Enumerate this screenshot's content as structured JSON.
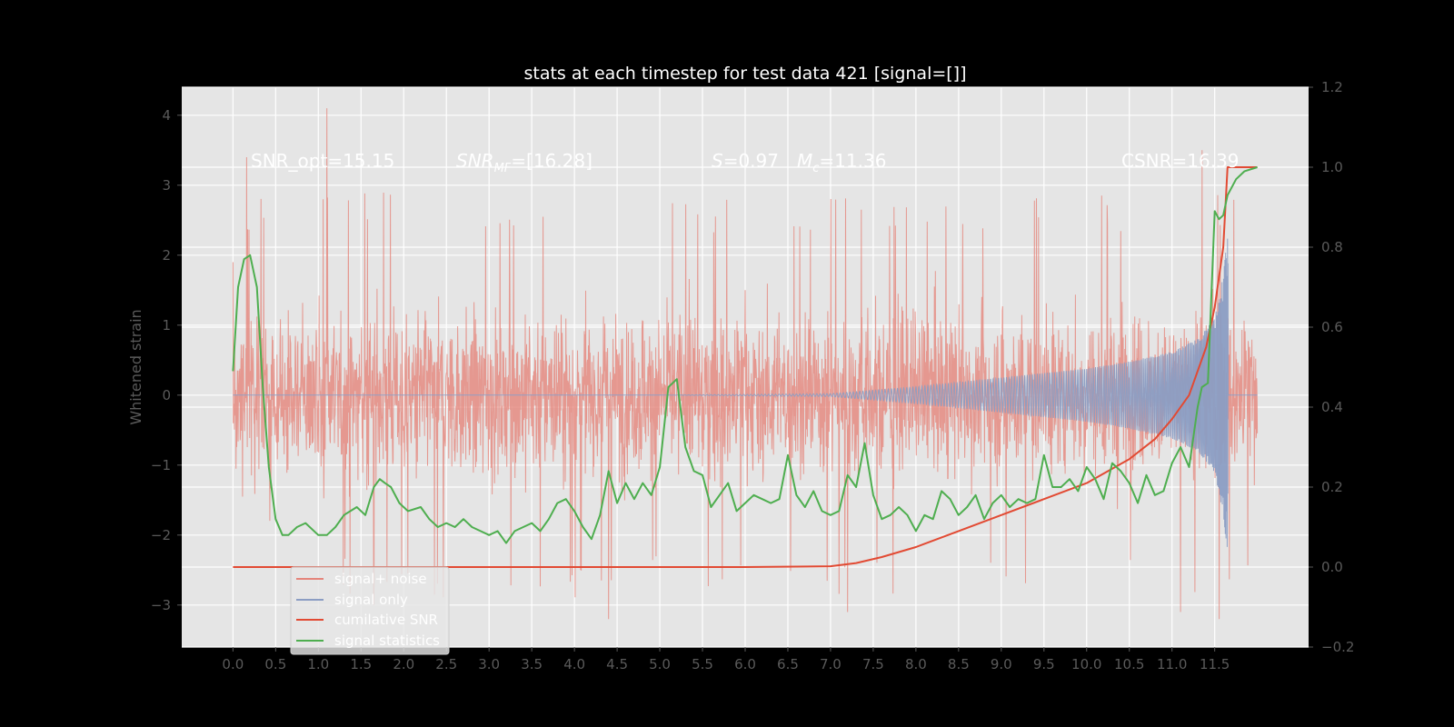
{
  "chart_data": {
    "type": "line",
    "title": "stats at each timestep for test data 421 [signal=[]]",
    "xlabel": "",
    "ylabel": "Whitened strain",
    "y2label": "",
    "xlim": [
      -0.6,
      12.6
    ],
    "ylim": [
      -3.6,
      4.4
    ],
    "y2lim": [
      -0.2,
      1.2
    ],
    "grid": true,
    "legend_position": "lower-left",
    "x_ticks": [
      "0.0",
      "0.5",
      "1.0",
      "1.5",
      "2.0",
      "2.5",
      "3.0",
      "3.5",
      "4.0",
      "4.5",
      "5.0",
      "5.5",
      "6.0",
      "6.5",
      "7.0",
      "7.5",
      "8.0",
      "8.5",
      "9.0",
      "9.5",
      "10.0",
      "10.5",
      "11.0",
      "11.5"
    ],
    "y_ticks": [
      "4",
      "3",
      "2",
      "1",
      "0",
      "−1",
      "−2",
      "−3"
    ],
    "y2_ticks": [
      "1.2",
      "1.0",
      "0.8",
      "0.6",
      "0.4",
      "0.2",
      "0.0",
      "−0.2"
    ],
    "annotations": {
      "snr_opt": "SNR_opt=15.15",
      "snr_mf_main": "SNR",
      "snr_mf_sub": "MF",
      "snr_mf_tail": "=[16.28]",
      "s_italic": "S",
      "s_value": "=0.97",
      "mc_main": "M",
      "mc_sub": "c",
      "mc_value": "=11.36",
      "csnr": "CSNR=16.39"
    },
    "series": [
      {
        "name": "signal+ noise",
        "color": "#e5857b",
        "axis": "left",
        "style": "dense noise, envelope approx ±2.3, spikes to 4.1 and −3.3",
        "x": [
          0.0,
          0.16,
          1.1,
          1.65,
          4.4,
          6.0,
          7.2,
          11.1,
          11.35,
          11.55
        ],
        "y": [
          1.9,
          3.4,
          4.1,
          -3.0,
          -3.2,
          1.5,
          -3.1,
          -3.1,
          3.5,
          -3.2
        ]
      },
      {
        "name": "signal only",
        "color": "#8b9dc3",
        "axis": "left",
        "style": "chirp with growing amplitude",
        "x": [
          0.0,
          5.0,
          7.0,
          8.0,
          9.0,
          10.0,
          10.5,
          11.0,
          11.3,
          11.5,
          11.6,
          11.65,
          11.7,
          12.0
        ],
        "amplitude": [
          0.0,
          0.0,
          0.02,
          0.12,
          0.25,
          0.38,
          0.48,
          0.62,
          0.8,
          1.1,
          1.7,
          2.3,
          0.05,
          0.0
        ]
      },
      {
        "name": "cumilative SNR",
        "color": "#e24a33",
        "axis": "right",
        "x": [
          0.0,
          6.0,
          7.0,
          7.3,
          7.6,
          8.0,
          8.5,
          9.0,
          9.5,
          10.0,
          10.5,
          10.8,
          11.0,
          11.2,
          11.4,
          11.5,
          11.6,
          11.65,
          12.0
        ],
        "y": [
          0.0,
          0.0,
          0.002,
          0.01,
          0.025,
          0.05,
          0.09,
          0.13,
          0.17,
          0.21,
          0.27,
          0.32,
          0.37,
          0.43,
          0.55,
          0.65,
          0.8,
          1.0,
          1.0
        ]
      },
      {
        "name": "signal statistics",
        "color": "#4eae4f",
        "axis": "right",
        "x": [
          0.0,
          0.06,
          0.13,
          0.2,
          0.28,
          0.35,
          0.42,
          0.5,
          0.58,
          0.65,
          0.75,
          0.85,
          1.0,
          1.1,
          1.2,
          1.3,
          1.45,
          1.55,
          1.65,
          1.72,
          1.78,
          1.85,
          1.95,
          2.05,
          2.2,
          2.3,
          2.4,
          2.5,
          2.6,
          2.7,
          2.8,
          2.9,
          3.0,
          3.1,
          3.2,
          3.3,
          3.4,
          3.5,
          3.6,
          3.7,
          3.8,
          3.9,
          4.0,
          4.1,
          4.2,
          4.3,
          4.4,
          4.5,
          4.6,
          4.7,
          4.8,
          4.9,
          5.0,
          5.1,
          5.2,
          5.3,
          5.4,
          5.5,
          5.6,
          5.7,
          5.8,
          5.9,
          6.0,
          6.1,
          6.2,
          6.3,
          6.4,
          6.5,
          6.6,
          6.7,
          6.8,
          6.9,
          7.0,
          7.1,
          7.2,
          7.3,
          7.4,
          7.5,
          7.6,
          7.7,
          7.8,
          7.9,
          8.0,
          8.1,
          8.2,
          8.3,
          8.4,
          8.5,
          8.6,
          8.7,
          8.8,
          8.9,
          9.0,
          9.1,
          9.2,
          9.3,
          9.4,
          9.5,
          9.6,
          9.7,
          9.8,
          9.9,
          10.0,
          10.1,
          10.2,
          10.3,
          10.4,
          10.5,
          10.6,
          10.7,
          10.8,
          10.9,
          11.0,
          11.1,
          11.2,
          11.3,
          11.35,
          11.42,
          11.5,
          11.55,
          11.6,
          11.65,
          11.75,
          11.85,
          12.0
        ],
        "y": [
          0.49,
          0.7,
          0.77,
          0.78,
          0.7,
          0.45,
          0.25,
          0.12,
          0.08,
          0.08,
          0.1,
          0.11,
          0.08,
          0.08,
          0.1,
          0.13,
          0.15,
          0.13,
          0.2,
          0.22,
          0.21,
          0.2,
          0.16,
          0.14,
          0.15,
          0.12,
          0.1,
          0.11,
          0.1,
          0.12,
          0.1,
          0.09,
          0.08,
          0.09,
          0.06,
          0.09,
          0.1,
          0.11,
          0.09,
          0.12,
          0.16,
          0.17,
          0.14,
          0.1,
          0.07,
          0.13,
          0.24,
          0.16,
          0.21,
          0.17,
          0.21,
          0.18,
          0.25,
          0.45,
          0.47,
          0.3,
          0.24,
          0.23,
          0.15,
          0.18,
          0.21,
          0.14,
          0.16,
          0.18,
          0.17,
          0.16,
          0.17,
          0.28,
          0.18,
          0.15,
          0.19,
          0.14,
          0.13,
          0.14,
          0.23,
          0.2,
          0.31,
          0.18,
          0.12,
          0.13,
          0.15,
          0.13,
          0.09,
          0.13,
          0.12,
          0.19,
          0.17,
          0.13,
          0.15,
          0.18,
          0.12,
          0.16,
          0.18,
          0.15,
          0.17,
          0.16,
          0.17,
          0.28,
          0.2,
          0.2,
          0.22,
          0.19,
          0.25,
          0.22,
          0.17,
          0.26,
          0.24,
          0.21,
          0.16,
          0.23,
          0.18,
          0.19,
          0.26,
          0.3,
          0.25,
          0.4,
          0.45,
          0.46,
          0.89,
          0.87,
          0.88,
          0.93,
          0.97,
          0.99,
          1.0
        ]
      }
    ]
  }
}
